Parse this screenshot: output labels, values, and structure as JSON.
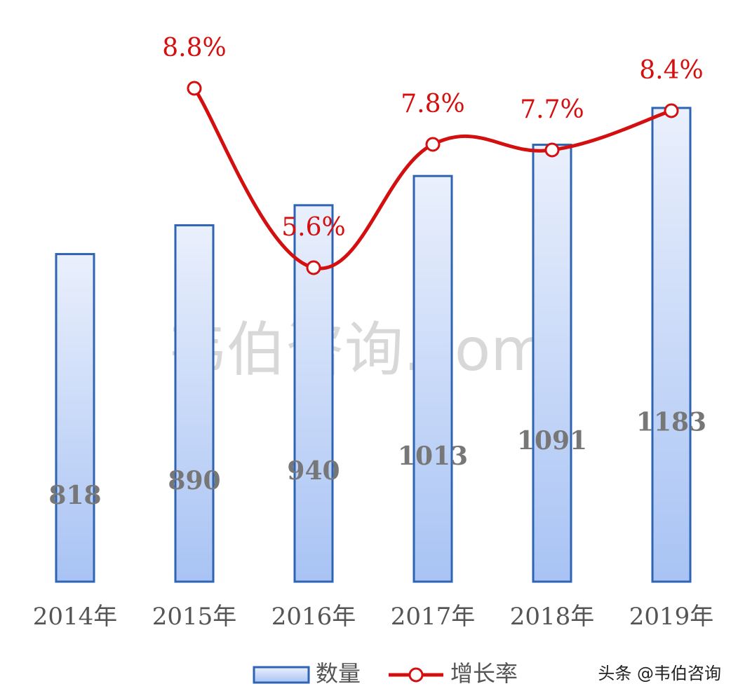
{
  "chart_data": {
    "type": "bar",
    "categories": [
      "2014年",
      "2015年",
      "2016年",
      "2017年",
      "2018年",
      "2019年"
    ],
    "series": [
      {
        "name": "数量",
        "type": "bar",
        "color": "#2e64b3",
        "values": [
          818,
          890,
          940,
          1013,
          1091,
          1183
        ]
      },
      {
        "name": "增长率",
        "type": "line",
        "axis": "y2",
        "color": "#d40f0f",
        "values": [
          null,
          8.8,
          5.6,
          7.8,
          7.7,
          8.4
        ],
        "value_labels": [
          null,
          "8.8%",
          "5.6%",
          "7.8%",
          "7.7%",
          "8.4%"
        ]
      }
    ],
    "ylim": [
      0,
      1400
    ],
    "y2lim": [
      0,
      10
    ],
    "grid": false,
    "legend": "bottom",
    "watermark": "韦伯咨询.com",
    "source": "头条 @韦伯咨询"
  }
}
